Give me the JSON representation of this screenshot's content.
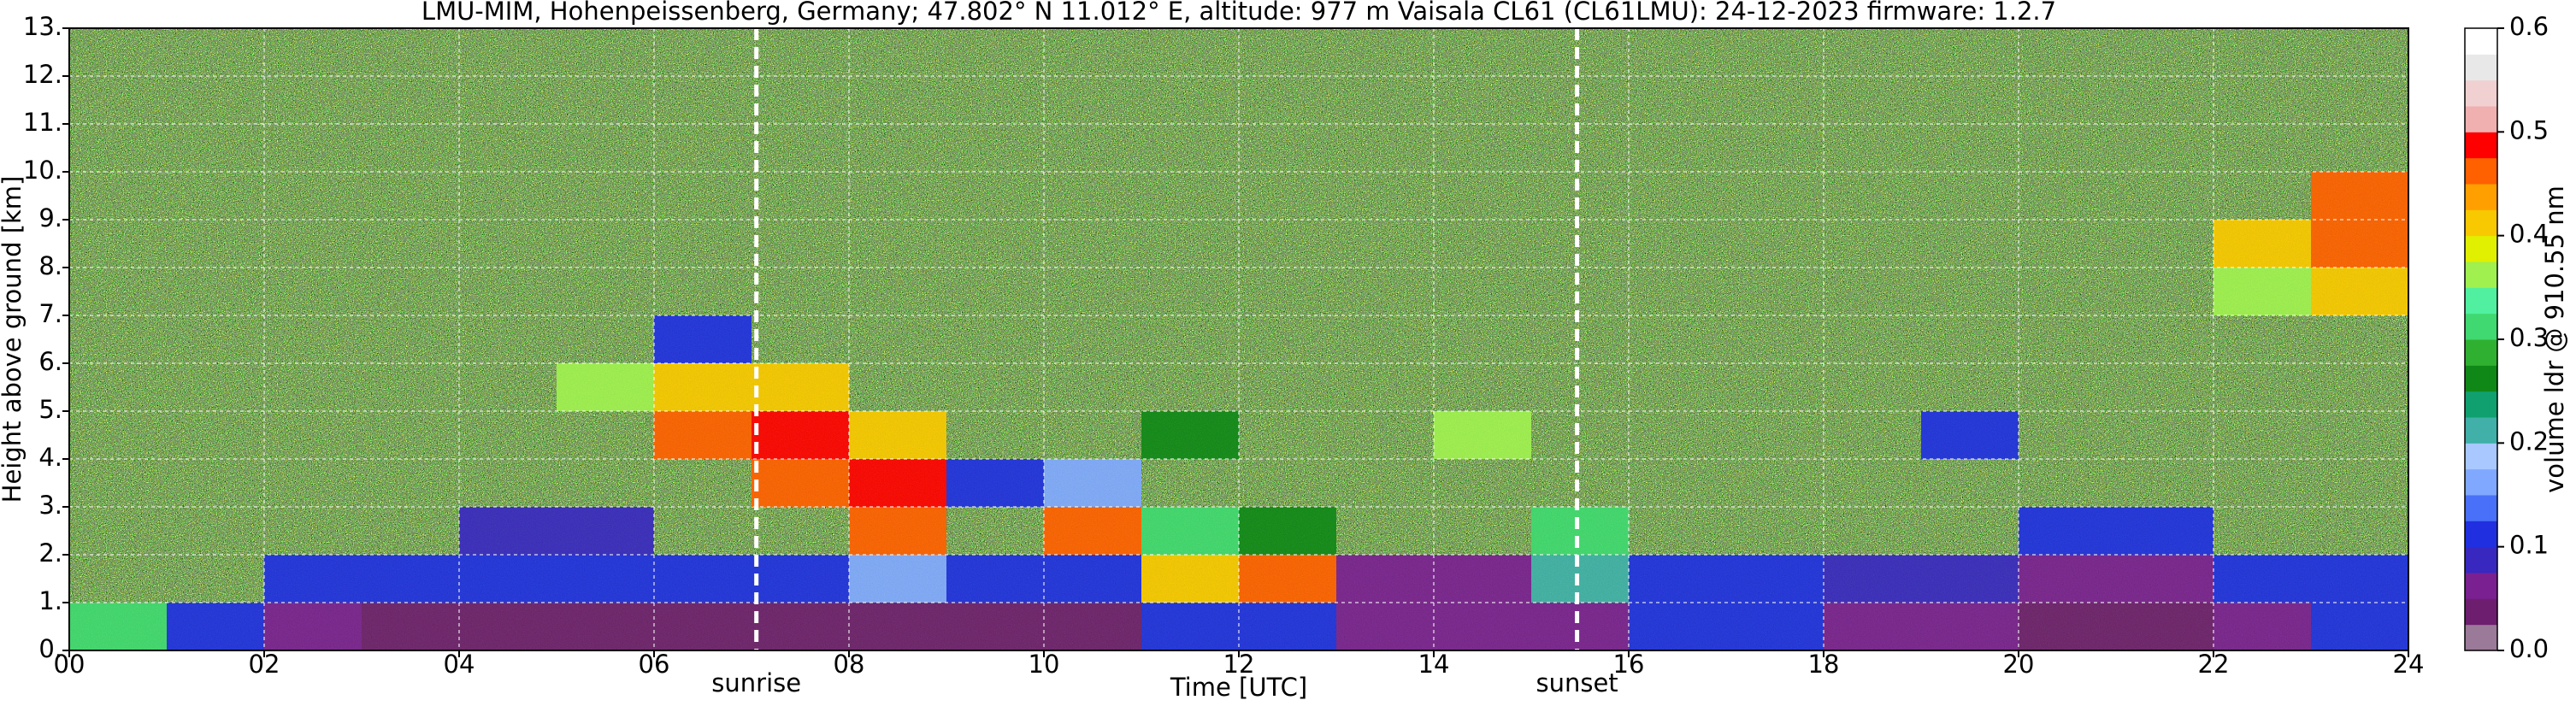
{
  "chart_data": {
    "type": "heatmap",
    "title": "LMU-MIM, Hohenpeissenberg, Germany; 47.802° N 11.012° E, altitude: 977 m    Vaisala CL61 (CL61LMU): 24-12-2023    firmware: 1.2.7",
    "x_label": "Time [UTC]",
    "y_label": "Height above ground [km]",
    "colorbar_label": "volume ldr @ 910.55 nm",
    "x": [
      0,
      1,
      2,
      3,
      4,
      5,
      6,
      7,
      8,
      9,
      10,
      11,
      12,
      13,
      14,
      15,
      16,
      17,
      18,
      19,
      20,
      21,
      22,
      23
    ],
    "y": [
      0,
      1,
      2,
      3,
      4,
      5,
      6,
      7,
      8,
      9,
      10,
      11,
      12
    ],
    "z": [
      [
        0.3,
        0.1,
        0.05,
        0.03,
        0.03,
        0.03,
        0.03,
        0.03,
        0.03,
        0.03,
        0.03,
        0.1,
        0.1,
        0.05,
        0.05,
        0.05,
        0.1,
        0.1,
        0.05,
        0.05,
        0.03,
        0.03,
        0.05,
        0.1
      ],
      [
        null,
        null,
        0.1,
        0.1,
        0.1,
        0.1,
        0.1,
        0.12,
        0.15,
        0.1,
        0.12,
        0.4,
        0.45,
        0.05,
        0.05,
        0.2,
        0.12,
        0.1,
        0.08,
        0.08,
        0.05,
        0.05,
        0.1,
        0.1
      ],
      [
        null,
        null,
        null,
        null,
        0.08,
        0.08,
        null,
        null,
        0.45,
        null,
        0.45,
        0.3,
        0.25,
        null,
        null,
        0.3,
        null,
        null,
        null,
        null,
        0.1,
        0.1,
        null,
        null
      ],
      [
        null,
        null,
        null,
        null,
        null,
        null,
        null,
        0.45,
        0.48,
        0.1,
        0.15,
        null,
        null,
        null,
        null,
        null,
        null,
        null,
        null,
        null,
        null,
        null,
        null,
        null
      ],
      [
        null,
        null,
        null,
        null,
        null,
        null,
        0.45,
        0.48,
        0.4,
        null,
        null,
        0.25,
        null,
        null,
        0.35,
        null,
        null,
        null,
        null,
        0.1,
        null,
        null,
        null,
        null
      ],
      [
        null,
        null,
        null,
        null,
        null,
        0.35,
        0.42,
        0.4,
        null,
        null,
        null,
        null,
        null,
        null,
        null,
        null,
        null,
        null,
        null,
        null,
        null,
        null,
        null,
        null
      ],
      [
        null,
        null,
        null,
        null,
        null,
        null,
        0.1,
        null,
        null,
        null,
        null,
        null,
        null,
        null,
        null,
        null,
        null,
        null,
        null,
        null,
        null,
        null,
        null,
        null
      ],
      [
        null,
        null,
        null,
        null,
        null,
        null,
        null,
        null,
        null,
        null,
        null,
        null,
        null,
        null,
        null,
        null,
        null,
        null,
        null,
        null,
        null,
        null,
        0.35,
        0.4
      ],
      [
        null,
        null,
        null,
        null,
        null,
        null,
        null,
        null,
        null,
        null,
        null,
        null,
        null,
        null,
        null,
        null,
        null,
        null,
        null,
        null,
        null,
        null,
        0.4,
        0.45
      ],
      [
        null,
        null,
        null,
        null,
        null,
        null,
        null,
        null,
        null,
        null,
        null,
        null,
        null,
        null,
        null,
        null,
        null,
        null,
        null,
        null,
        null,
        null,
        null,
        0.45
      ],
      [
        null,
        null,
        null,
        null,
        null,
        null,
        null,
        null,
        null,
        null,
        null,
        null,
        null,
        null,
        null,
        null,
        null,
        null,
        null,
        null,
        null,
        null,
        null,
        null
      ],
      [
        null,
        null,
        null,
        null,
        null,
        null,
        null,
        null,
        null,
        null,
        null,
        null,
        null,
        null,
        null,
        null,
        null,
        null,
        null,
        null,
        null,
        null,
        null,
        null
      ],
      [
        null,
        null,
        null,
        null,
        null,
        null,
        null,
        null,
        null,
        null,
        null,
        null,
        null,
        null,
        null,
        null,
        null,
        null,
        null,
        null,
        null,
        null,
        null,
        null
      ]
    ],
    "xlim": [
      0,
      24
    ],
    "xticks": [
      {
        "value": 0,
        "label": "00"
      },
      {
        "value": 2,
        "label": "02"
      },
      {
        "value": 4,
        "label": "04"
      },
      {
        "value": 6,
        "label": "06"
      },
      {
        "value": 8,
        "label": "08"
      },
      10,
      12,
      14,
      16,
      18,
      20,
      22,
      24
    ],
    "ylim": [
      0,
      13
    ],
    "yticks": [
      {
        "value": 0,
        "label": "0."
      },
      {
        "value": 1,
        "label": "1."
      },
      {
        "value": 2,
        "label": "2."
      },
      {
        "value": 3,
        "label": "3."
      },
      {
        "value": 4,
        "label": "4."
      },
      {
        "value": 5,
        "label": "5."
      },
      {
        "value": 6,
        "label": "6."
      },
      {
        "value": 7,
        "label": "7."
      },
      {
        "value": 8,
        "label": "8."
      },
      {
        "value": 9,
        "label": "9."
      },
      {
        "value": 10,
        "label": "10."
      },
      {
        "value": 11,
        "label": "11."
      },
      {
        "value": 12,
        "label": "12."
      },
      {
        "value": 13,
        "label": "13."
      }
    ],
    "zlim": [
      0,
      0.6
    ],
    "zticks": [
      {
        "value": 0,
        "label": "0.0"
      },
      0.1,
      0.2,
      0.3,
      0.4,
      0.5,
      0.6
    ],
    "colorscale": [
      "#9a7a98",
      "#6e1e6e",
      "#7a2090",
      "#3828c0",
      "#2030e0",
      "#4870f8",
      "#80a8ff",
      "#a8c8ff",
      "#40b0a8",
      "#10a070",
      "#108818",
      "#30b030",
      "#40d870",
      "#50f0a0",
      "#a0f050",
      "#e0f000",
      "#f8c800",
      "#ffa000",
      "#ff6000",
      "#ff0000",
      "#f0b0b0",
      "#f0d0d0",
      "#e8e8e8",
      "#ffffff"
    ],
    "grid": true,
    "annotations": [
      {
        "text": "sunrise",
        "x": 7.05
      },
      {
        "text": "sunset",
        "x": 15.47
      }
    ]
  }
}
